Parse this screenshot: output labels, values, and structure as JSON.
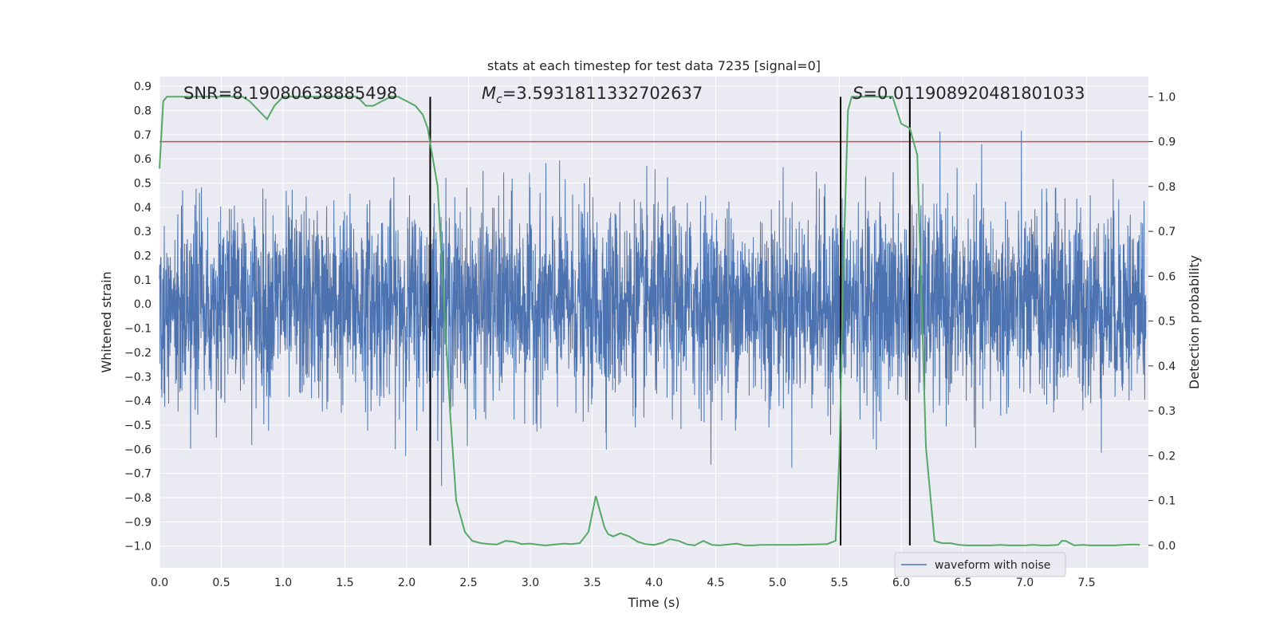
{
  "chart_data": {
    "type": "line",
    "title": "stats at each timestep for test data 7235 [signal=0]",
    "xlabel": "Time (s)",
    "ylabel": "Whitened strain",
    "y2label": "Detection probability",
    "xlim": [
      0.0,
      8.0
    ],
    "ylim": [
      -1.09,
      0.94
    ],
    "y2lim": [
      -0.05,
      1.045
    ],
    "grid": true,
    "legend_position": "lower-right",
    "x_ticks": [
      "0.0",
      "0.5",
      "1.0",
      "1.5",
      "2.0",
      "2.5",
      "3.0",
      "3.5",
      "4.0",
      "4.5",
      "5.0",
      "5.5",
      "6.0",
      "6.5",
      "7.0",
      "7.5"
    ],
    "y_ticks": [
      "0.9",
      "0.8",
      "0.7",
      "0.6",
      "0.5",
      "0.4",
      "0.3",
      "0.2",
      "0.1",
      "0.0",
      "−0.1",
      "−0.2",
      "−0.3",
      "−0.4",
      "−0.5",
      "−0.6",
      "−0.7",
      "−0.8",
      "−0.9",
      "−1.0"
    ],
    "y2_ticks": [
      "1.0",
      "0.9",
      "0.8",
      "0.7",
      "0.6",
      "0.5",
      "0.4",
      "0.3",
      "0.2",
      "0.1",
      "0.0"
    ],
    "annotations": {
      "snr": "SNR=8.19080638885498",
      "mc_symbol": "M",
      "mc_sub": "c",
      "mc_value": "=3.5931811332702637",
      "s_symbol": "S",
      "s_value": "=0.011908920481801033"
    },
    "threshold": {
      "value": 0.9,
      "axis": "y2",
      "color": "#c44e52"
    },
    "vertical_lines": [
      2.19,
      5.51,
      6.07
    ],
    "series": [
      {
        "name": "waveform with noise",
        "axis": "y",
        "color": "#4c72b0",
        "kind": "noise",
        "sample_count": 4096,
        "approx_std": 0.2,
        "range": [
          -1.0,
          0.85
        ]
      },
      {
        "name": "",
        "axis": "y2",
        "color": "#55a868",
        "x": [
          0.0,
          0.03,
          0.06,
          0.12,
          0.2,
          0.3,
          0.4,
          0.5,
          0.6,
          0.67,
          0.73,
          0.8,
          0.87,
          0.93,
          1.0,
          1.1,
          1.2,
          1.3,
          1.4,
          1.5,
          1.6,
          1.67,
          1.73,
          1.8,
          1.87,
          1.93,
          2.0,
          2.07,
          2.13,
          2.17,
          2.2,
          2.25,
          2.3,
          2.35,
          2.4,
          2.47,
          2.53,
          2.6,
          2.67,
          2.73,
          2.8,
          2.87,
          2.93,
          3.0,
          3.07,
          3.13,
          3.2,
          3.27,
          3.33,
          3.4,
          3.47,
          3.53,
          3.6,
          3.63,
          3.67,
          3.73,
          3.8,
          3.87,
          3.93,
          4.0,
          4.07,
          4.13,
          4.2,
          4.27,
          4.33,
          4.4,
          4.47,
          4.53,
          4.6,
          4.67,
          4.73,
          4.8,
          4.87,
          5.0,
          5.13,
          5.27,
          5.4,
          5.47,
          5.5,
          5.53,
          5.57,
          5.6,
          5.67,
          5.73,
          5.8,
          5.87,
          5.93,
          6.0,
          6.07,
          6.13,
          6.2,
          6.27,
          6.33,
          6.4,
          6.47,
          6.53,
          6.6,
          6.67,
          6.73,
          6.8,
          6.87,
          6.93,
          7.0,
          7.07,
          7.13,
          7.2,
          7.27,
          7.3,
          7.33,
          7.4,
          7.47,
          7.53,
          7.6,
          7.67,
          7.73,
          7.8,
          7.87,
          7.9,
          7.93
        ],
        "values": [
          0.84,
          0.99,
          1.0,
          1.0,
          1.0,
          1.0,
          1.0,
          1.0,
          1.0,
          1.0,
          0.99,
          0.97,
          0.95,
          0.98,
          1.0,
          1.0,
          1.0,
          1.0,
          1.0,
          1.0,
          1.0,
          0.98,
          0.98,
          0.99,
          1.0,
          1.0,
          0.99,
          0.98,
          0.96,
          0.93,
          0.88,
          0.8,
          0.55,
          0.3,
          0.1,
          0.03,
          0.01,
          0.005,
          0.003,
          0.002,
          0.01,
          0.008,
          0.003,
          0.004,
          0.001,
          0.0,
          0.002,
          0.004,
          0.003,
          0.005,
          0.03,
          0.11,
          0.04,
          0.025,
          0.02,
          0.027,
          0.02,
          0.008,
          0.003,
          0.001,
          0.006,
          0.014,
          0.01,
          0.002,
          0.0,
          0.01,
          0.001,
          0.0,
          0.002,
          0.004,
          0.0,
          0.0,
          0.001,
          0.001,
          0.001,
          0.002,
          0.003,
          0.01,
          0.2,
          0.6,
          0.97,
          1.0,
          1.0,
          1.0,
          1.0,
          1.0,
          1.0,
          0.94,
          0.93,
          0.87,
          0.22,
          0.01,
          0.005,
          0.005,
          0.001,
          0.0,
          0.0,
          0.0,
          0.0,
          0.001,
          0.0,
          0.0,
          0.0,
          0.001,
          0.0,
          0.0,
          0.001,
          0.01,
          0.01,
          0.0,
          0.001,
          0.0,
          0.0,
          0.0,
          0.0,
          0.001,
          0.002,
          0.002,
          0.001
        ]
      }
    ]
  }
}
